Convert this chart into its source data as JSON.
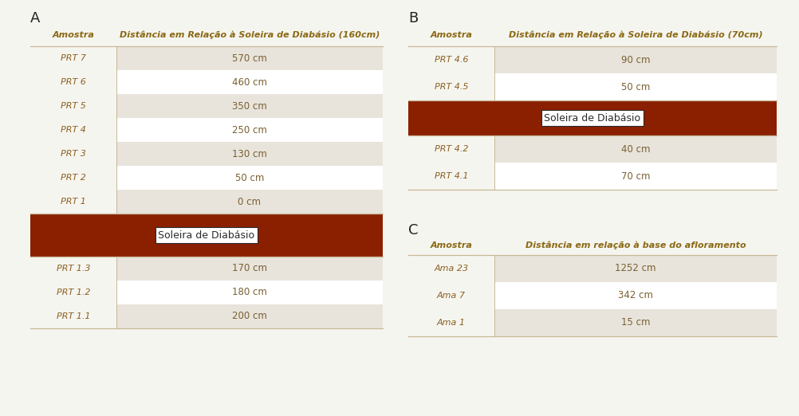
{
  "bg_color": "#f5f5f0",
  "table_bg_alt": "#e8e4dc",
  "table_bg_white": "#ffffff",
  "sill_color": "#8b2000",
  "header_color": "#8b6914",
  "text_color": "#7a6030",
  "label_color": "#8b6020",
  "border_color": "#c8b898",
  "section_label_color": "#222222",
  "sill_label_color": "#2a2a2a",
  "A_title": "A",
  "A_col1": "Amostra",
  "A_col2": "Distância em Relação à Soleira de Diabásio (160cm)",
  "A_rows_above": [
    [
      "PRT 7",
      "570 cm"
    ],
    [
      "PRT 6",
      "460 cm"
    ],
    [
      "PRT 5",
      "350 cm"
    ],
    [
      "PRT 4",
      "250 cm"
    ],
    [
      "PRT 3",
      "130 cm"
    ],
    [
      "PRT 2",
      "50 cm"
    ],
    [
      "PRT 1",
      "0 cm"
    ]
  ],
  "A_sill": "Soleira de Diabásio",
  "A_rows_below": [
    [
      "PRT 1.3",
      "170 cm"
    ],
    [
      "PRT 1.2",
      "180 cm"
    ],
    [
      "PRT 1.1",
      "200 cm"
    ]
  ],
  "B_title": "B",
  "B_col1": "Amostra",
  "B_col2": "Distância em Relação à Soleira de Diabásio (70cm)",
  "B_rows_above": [
    [
      "PRT 4.6",
      "90 cm"
    ],
    [
      "PRT 4.5",
      "50 cm"
    ]
  ],
  "B_sill": "Soleira de Diabásio",
  "B_rows_below": [
    [
      "PRT 4.2",
      "40 cm"
    ],
    [
      "PRT 4.1",
      "70 cm"
    ]
  ],
  "C_title": "C",
  "C_col1": "Amostra",
  "C_col2": "Distância em relação à base do afloramento",
  "C_rows": [
    [
      "Ama 23",
      "1252 cm"
    ],
    [
      "Ama 7",
      "342 cm"
    ],
    [
      "Ama 1",
      "15 cm"
    ]
  ]
}
